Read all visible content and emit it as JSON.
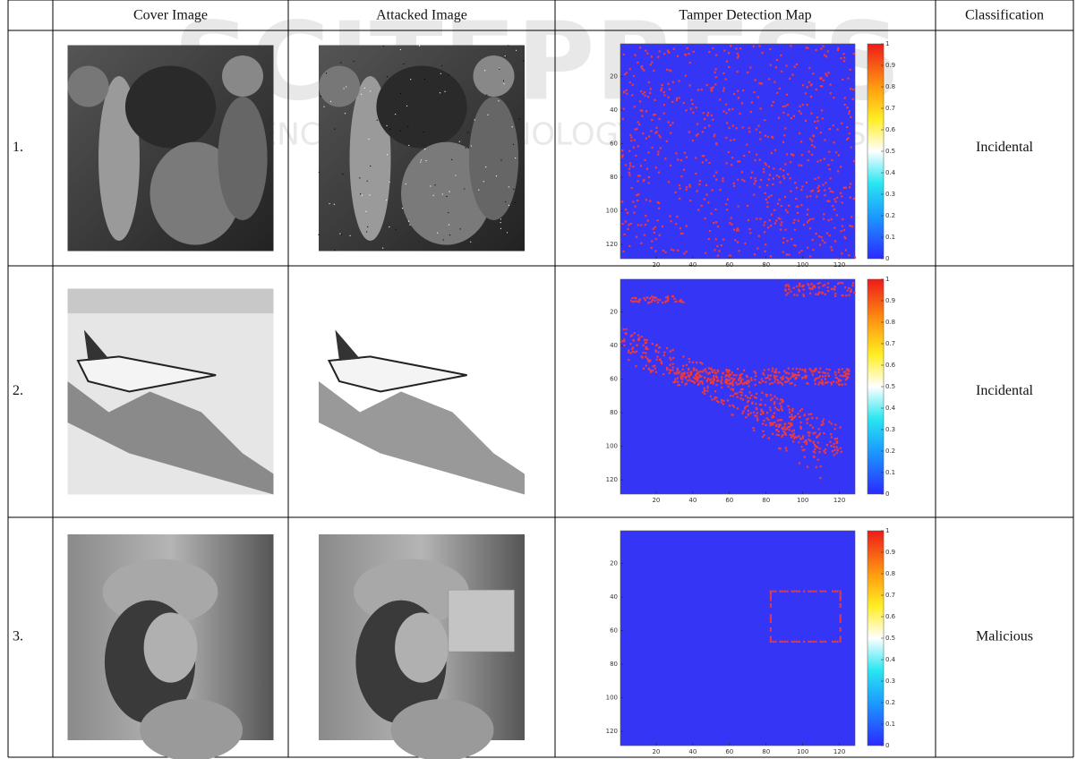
{
  "watermark": {
    "logo": "SCITEPRESS",
    "tagline": "SCIENCE AND TECHNOLOGY PUBLICATIONS"
  },
  "table": {
    "header": [
      "Cover Image",
      "Attacked Image",
      "Tamper Detection Map",
      "Classification"
    ],
    "rows": [
      {
        "number": "1.",
        "classification": "Incidental"
      },
      {
        "number": "2.",
        "classification": "Incidental"
      },
      {
        "number": "3.",
        "classification": "Malicious"
      }
    ]
  },
  "map_axes": {
    "xlim": [
      0.5,
      128.5
    ],
    "ylim": [
      0.5,
      128.5
    ],
    "xticks": [
      20,
      40,
      60,
      80,
      100,
      120
    ],
    "yticks": [
      20,
      40,
      60,
      80,
      100,
      120
    ],
    "colorbar_lim": [
      0,
      1
    ],
    "colorbar_ticks": [
      0,
      0.1,
      0.2,
      0.3,
      0.4,
      0.5,
      0.6,
      0.7,
      0.8,
      0.9,
      1
    ]
  }
}
